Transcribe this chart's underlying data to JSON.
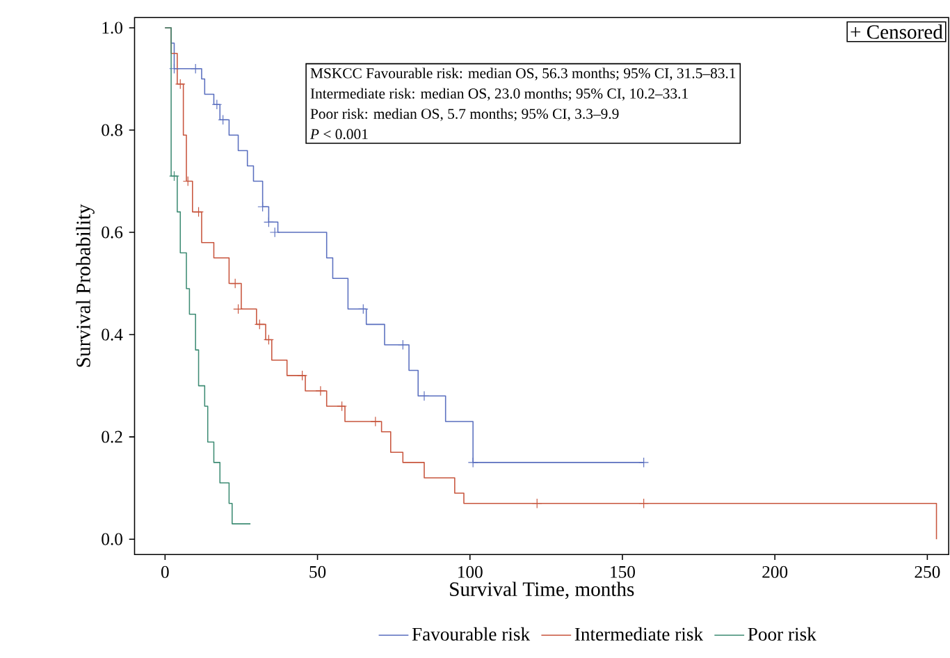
{
  "chart_data": {
    "type": "step",
    "xlabel": "Survival Time, months",
    "ylabel": "Survival Probability",
    "xlim": [
      -10,
      257
    ],
    "ylim": [
      -0.03,
      1.02
    ],
    "xticks": [
      0,
      50,
      100,
      150,
      200,
      250
    ],
    "yticks": [
      {
        "value": 0,
        "label": "0.0"
      },
      {
        "value": 0.2,
        "label": "0.2"
      },
      {
        "value": 0.4,
        "label": "0.4"
      },
      {
        "value": 0.6,
        "label": "0.6"
      },
      {
        "value": 0.8,
        "label": "0.8"
      },
      {
        "value": 1.0,
        "label": "1.0"
      }
    ],
    "legend": "bottom",
    "grid": false,
    "annotations": [
      "+ Censored",
      "MSKCC Favourable risk: median OS, 56.3 months; 95% CI, 31.5–83.1",
      "Intermediate risk: median OS, 23.0 months; 95% CI, 10.2–33.1",
      "Poor risk: median OS, 5.7 months; 95% CI, 3.3–9.9",
      "*P* < 0.001"
    ],
    "series": [
      {
        "name": "Favourable risk",
        "color": "#5a6fbf",
        "x": [
          0,
          2,
          3,
          12,
          13,
          16,
          18,
          21,
          24,
          27,
          29,
          32,
          34,
          37,
          53,
          55,
          60,
          66,
          72,
          80,
          83,
          92,
          101,
          157
        ],
        "values": [
          1.0,
          0.97,
          0.92,
          0.9,
          0.87,
          0.85,
          0.82,
          0.79,
          0.76,
          0.73,
          0.7,
          0.65,
          0.62,
          0.6,
          0.55,
          0.51,
          0.45,
          0.42,
          0.38,
          0.33,
          0.28,
          0.23,
          0.15,
          0.15
        ]
      },
      {
        "name": "Intermediate risk",
        "color": "#c8553d",
        "x": [
          0,
          2,
          4,
          6,
          7,
          9,
          12,
          16,
          21,
          25,
          30,
          33,
          35,
          40,
          46,
          53,
          59,
          71,
          74,
          78,
          85,
          95,
          98,
          253,
          253
        ],
        "values": [
          1.0,
          0.95,
          0.89,
          0.79,
          0.7,
          0.64,
          0.58,
          0.55,
          0.5,
          0.45,
          0.42,
          0.39,
          0.35,
          0.32,
          0.29,
          0.26,
          0.23,
          0.21,
          0.17,
          0.15,
          0.12,
          0.09,
          0.07,
          0.07,
          0.0
        ]
      },
      {
        "name": "Poor risk",
        "color": "#3e8c74",
        "x": [
          0,
          2,
          4,
          5,
          7,
          8,
          10,
          11,
          13,
          14,
          16,
          18,
          21,
          22,
          28
        ],
        "values": [
          1.0,
          0.71,
          0.64,
          0.56,
          0.49,
          0.44,
          0.37,
          0.3,
          0.26,
          0.19,
          0.15,
          0.11,
          0.07,
          0.03,
          0.03
        ]
      },
      {
        "type": "scatter",
        "marker": "cross",
        "color": "#5a6fbf",
        "x": [
          3,
          10,
          17,
          19,
          32,
          34,
          36,
          65,
          78,
          85,
          101,
          157
        ],
        "values": [
          0.92,
          0.92,
          0.85,
          0.82,
          0.65,
          0.62,
          0.6,
          0.45,
          0.38,
          0.28,
          0.15,
          0.15
        ]
      },
      {
        "type": "scatter",
        "marker": "cross",
        "color": "#c8553d",
        "x": [
          5,
          7.5,
          11,
          23,
          24,
          31,
          34,
          45,
          51,
          58,
          69,
          122,
          157
        ],
        "values": [
          0.89,
          0.7,
          0.64,
          0.5,
          0.45,
          0.42,
          0.39,
          0.32,
          0.29,
          0.26,
          0.23,
          0.07,
          0.07
        ]
      },
      {
        "type": "scatter",
        "marker": "cross",
        "color": "#3e8c74",
        "x": [
          3
        ],
        "values": [
          0.71
        ]
      }
    ]
  }
}
